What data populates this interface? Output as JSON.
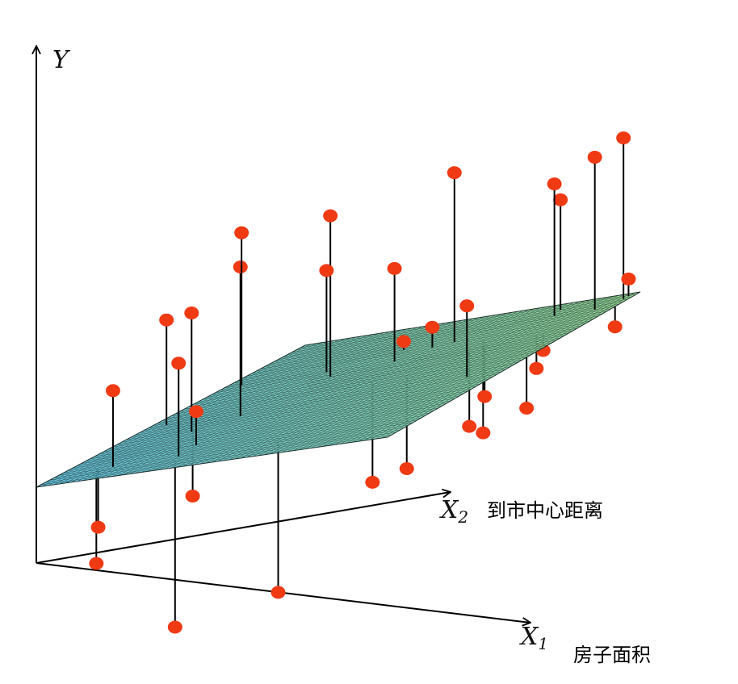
{
  "axes": {
    "y": {
      "symbol": "Y",
      "subscript": ""
    },
    "x2": {
      "symbol": "X",
      "subscript": "2",
      "description": "到市中心距离"
    },
    "x1": {
      "symbol": "X",
      "subscript": "1",
      "description": "房子面积"
    }
  },
  "plane": {
    "color_front": "#5cc4e4",
    "color_back": "#8fd48a",
    "mesh_color": "#1a2a2a"
  },
  "point_color": "#f03a14",
  "points": [
    {
      "s": 0.05,
      "t": 0.42,
      "r": 0.62
    },
    {
      "s": 0.11,
      "t": 0.08,
      "r": -0.55
    },
    {
      "s": 0.1,
      "t": 0.1,
      "r": -0.35
    },
    {
      "s": 0.15,
      "t": 0.09,
      "r": 0.45
    },
    {
      "s": 0.2,
      "t": 0.32,
      "r": 0.7
    },
    {
      "s": 0.35,
      "t": 0.06,
      "r": -0.98
    },
    {
      "s": 0.28,
      "t": 0.4,
      "r": 0.88
    },
    {
      "s": 0.35,
      "t": 0.65,
      "r": 0.95
    },
    {
      "s": 0.33,
      "t": 0.1,
      "r": 0.55
    },
    {
      "s": 0.05,
      "t": 0.7,
      "r": 0.9
    },
    {
      "s": 0.32,
      "t": 0.18,
      "r": 0.2
    },
    {
      "s": 0.18,
      "t": 0.35,
      "r": -0.4
    },
    {
      "s": 0.6,
      "t": 0.12,
      "r": -0.9
    },
    {
      "s": 0.55,
      "t": 0.55,
      "r": -0.6
    },
    {
      "s": 0.65,
      "t": 0.55,
      "r": -0.55
    },
    {
      "s": 0.6,
      "t": 0.8,
      "r": 1.0
    },
    {
      "s": 0.5,
      "t": 0.7,
      "r": 0.55
    },
    {
      "s": 0.3,
      "t": 0.7,
      "r": 0.6
    },
    {
      "s": 0.45,
      "t": 0.8,
      "r": 0.05
    },
    {
      "s": 0.55,
      "t": 0.78,
      "r": 0.12
    },
    {
      "s": 0.7,
      "t": 0.78,
      "r": -0.55
    },
    {
      "s": 0.72,
      "t": 0.7,
      "r": -0.45
    },
    {
      "s": 0.75,
      "t": 0.72,
      "r": -0.3
    },
    {
      "s": 0.88,
      "t": 0.75,
      "r": -0.2
    },
    {
      "s": 0.8,
      "t": 0.95,
      "r": 0.65
    },
    {
      "s": 0.82,
      "t": 0.9,
      "r": 0.78
    },
    {
      "s": 0.9,
      "t": 0.75,
      "r": -0.1
    },
    {
      "s": 0.94,
      "t": 0.9,
      "r": 0.9
    },
    {
      "s": 0.98,
      "t": 0.96,
      "r": 0.95
    },
    {
      "s": 0.98,
      "t": 0.98,
      "r": 0.1
    },
    {
      "s": 1.0,
      "t": 0.9,
      "r": -0.12
    },
    {
      "s": 0.9,
      "t": 0.45,
      "r": 0.42
    },
    {
      "s": 1.0,
      "t": 0.55,
      "r": -0.3
    }
  ]
}
